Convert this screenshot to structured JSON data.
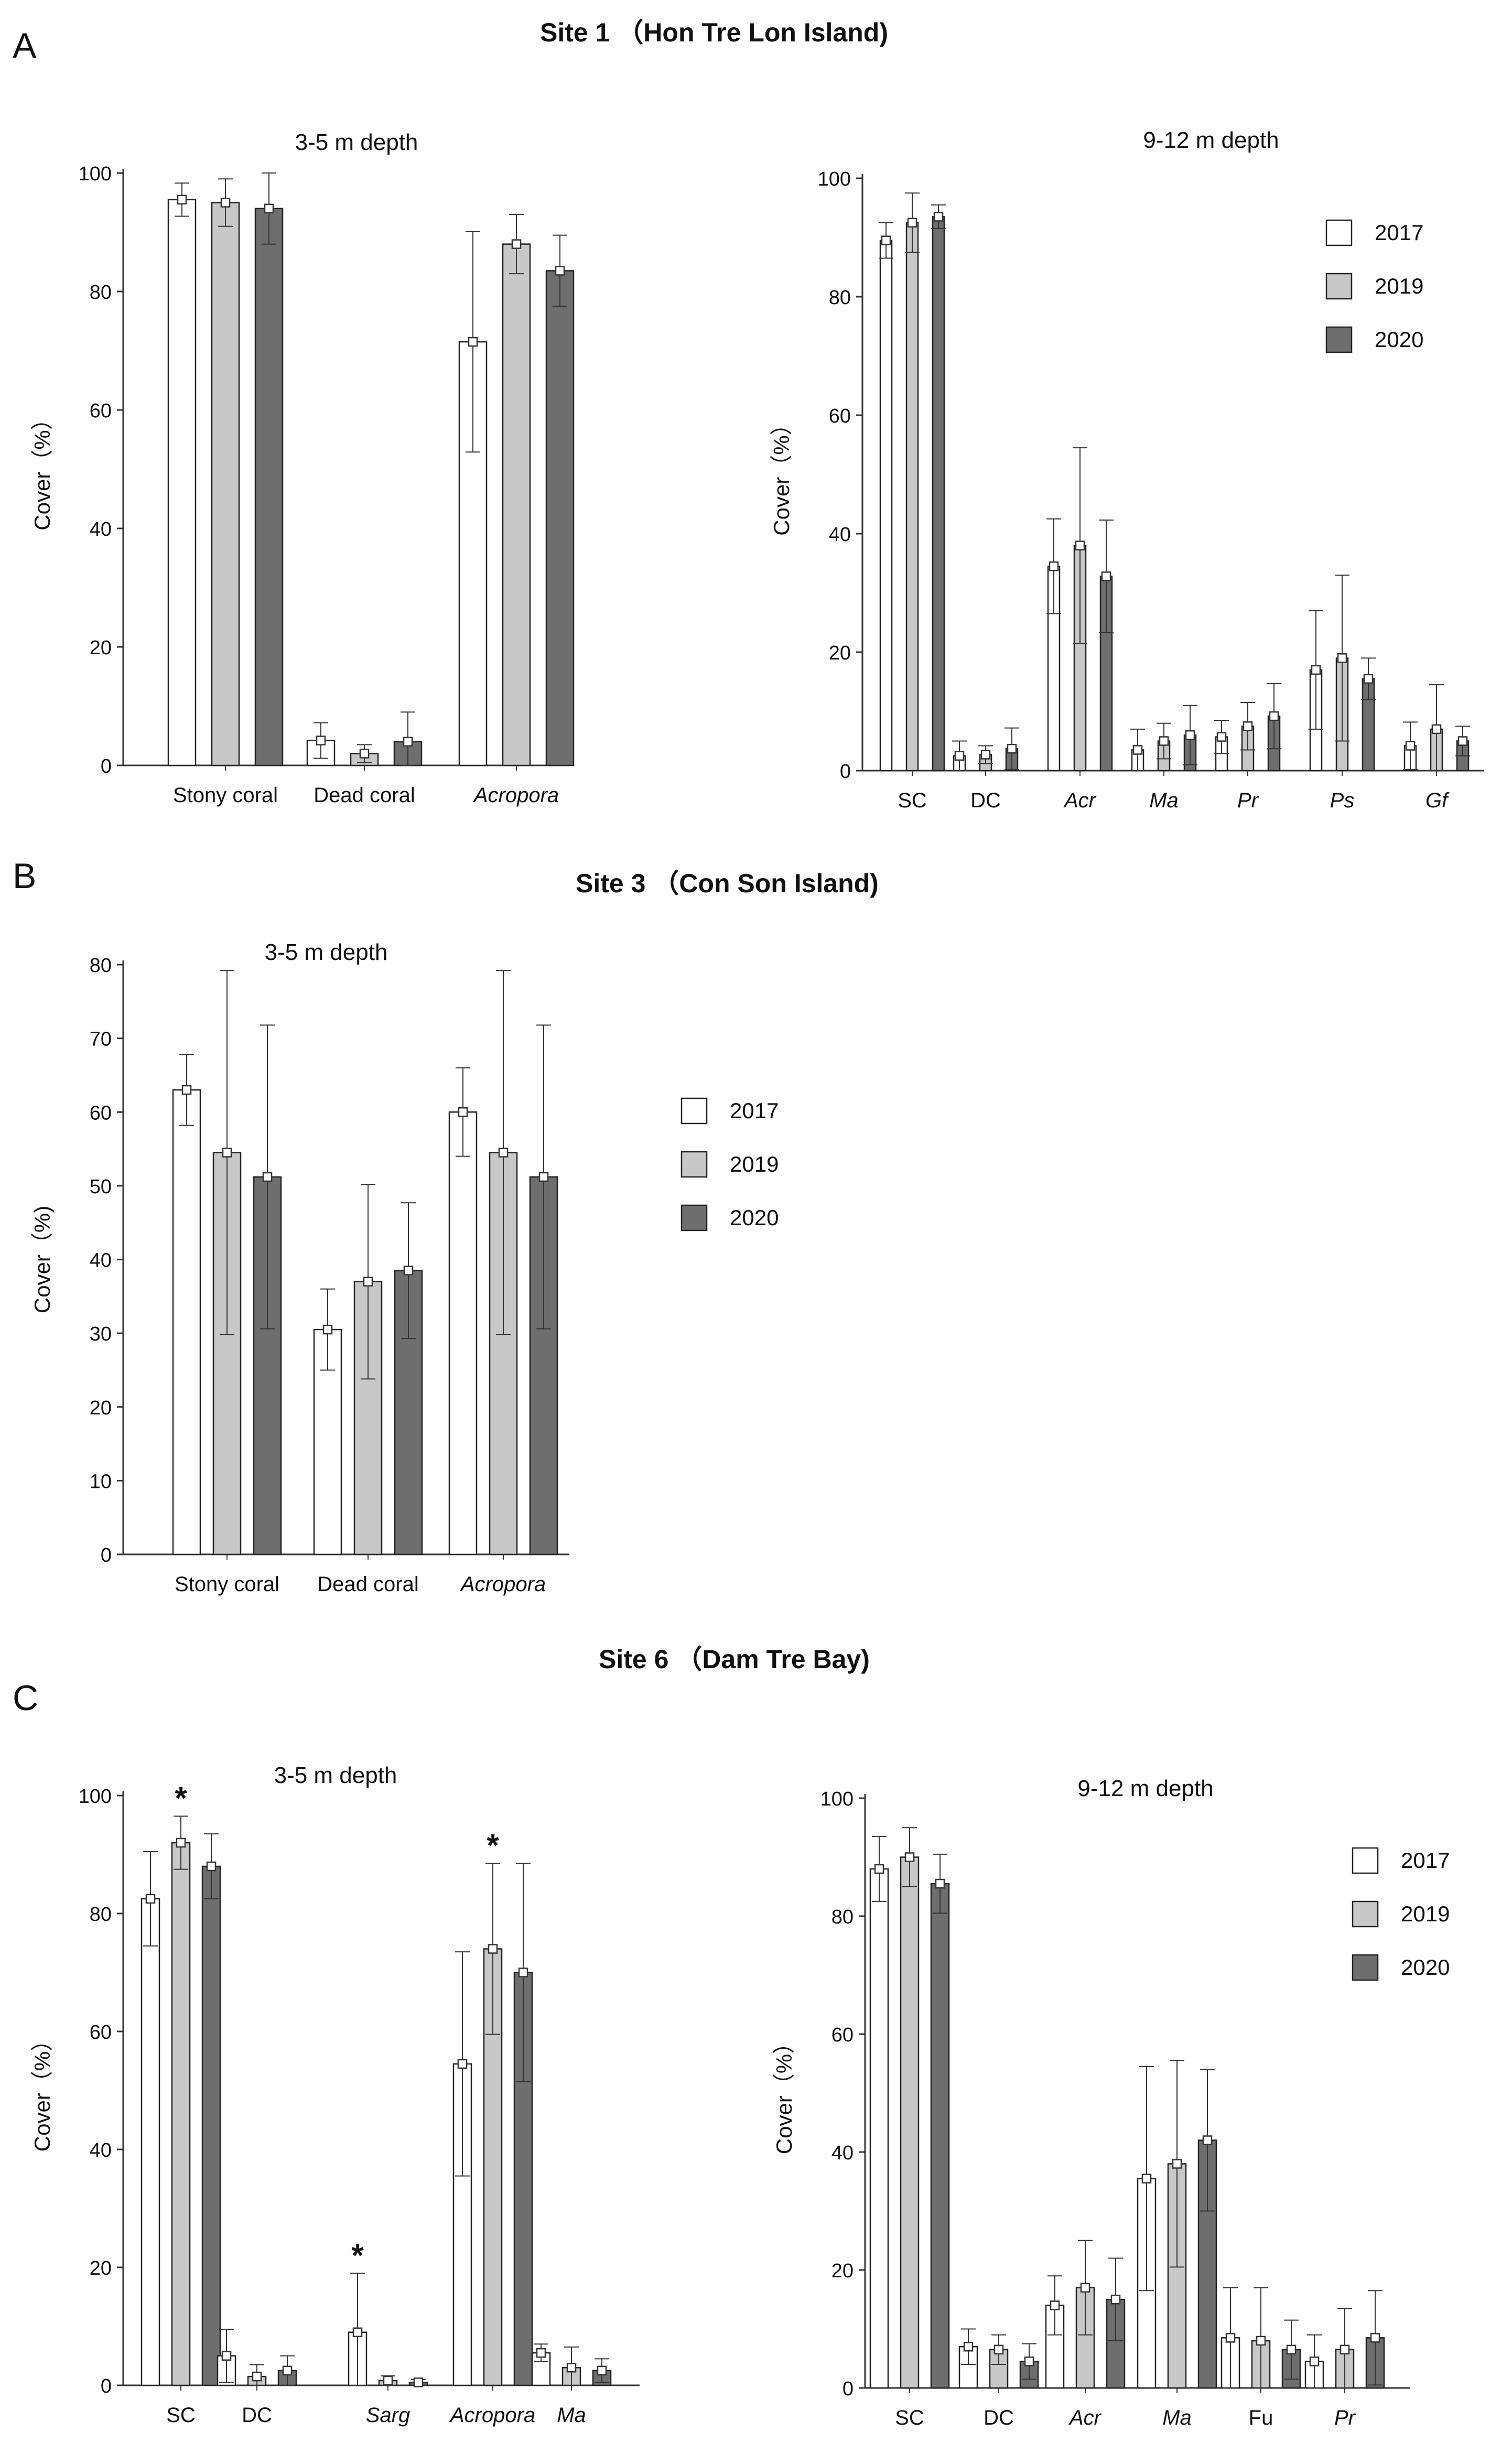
{
  "figure": {
    "panels": [
      {
        "letter": "A",
        "site_title": "Site 1 （Hon Tre Lon Island)"
      },
      {
        "letter": "B",
        "site_title": "Site 3 （Con Son Island)"
      },
      {
        "letter": "C",
        "site_title": "Site 6 （Dam Tre Bay)"
      }
    ]
  },
  "style": {
    "colors": {
      "2017": "#ffffff",
      "2019": "#c8c8c8",
      "2020": "#6e6e6e"
    },
    "axis_color": "#333333"
  },
  "chart_data": [
    {
      "id": "A1",
      "type": "bar",
      "title": "3-5 m depth",
      "ylabel": "Cover（%）",
      "ylim": [
        0,
        100
      ],
      "yticks": [
        0,
        20,
        40,
        60,
        80,
        100
      ],
      "categories": [
        "Stony coral",
        "Dead coral",
        "Acropora"
      ],
      "italic": [
        false,
        false,
        true
      ],
      "series": [
        {
          "name": "2017",
          "values": [
            95.5,
            4.2,
            71.5
          ],
          "errors": [
            2.8,
            3.0,
            18.6
          ]
        },
        {
          "name": "2019",
          "values": [
            95.0,
            2.0,
            88.0
          ],
          "errors": [
            4.0,
            1.5,
            5.0
          ]
        },
        {
          "name": "2020",
          "values": [
            94.0,
            4.0,
            83.5
          ],
          "errors": [
            6.0,
            5.0,
            6.0
          ]
        }
      ],
      "legend": false,
      "stars": []
    },
    {
      "id": "A2",
      "type": "bar",
      "title": "9-12 m depth",
      "ylabel": "Cover（%）",
      "ylim": [
        0,
        100
      ],
      "yticks": [
        0,
        20,
        40,
        60,
        80,
        100
      ],
      "categories": [
        "SC",
        "DC",
        "Acr",
        "Ma",
        "Pr",
        "Ps",
        "Gf"
      ],
      "italic": [
        false,
        false,
        true,
        true,
        true,
        true,
        true
      ],
      "series": [
        {
          "name": "2017",
          "values": [
            89.5,
            2.5,
            34.5,
            3.5,
            5.7,
            17.0,
            4.2
          ],
          "errors": [
            3.0,
            2.5,
            8.0,
            3.5,
            2.8,
            10.0,
            4.0
          ]
        },
        {
          "name": "2019",
          "values": [
            92.5,
            2.7,
            38.0,
            5.0,
            7.5,
            19.0,
            7.0
          ],
          "errors": [
            5.0,
            1.5,
            16.5,
            3.0,
            4.0,
            14.0,
            7.5
          ]
        },
        {
          "name": "2020",
          "values": [
            93.5,
            3.7,
            32.8,
            6.0,
            9.2,
            15.5,
            5.0
          ],
          "errors": [
            2.0,
            3.5,
            9.5,
            5.0,
            5.5,
            3.5,
            2.5
          ]
        }
      ],
      "legend": true,
      "stars": []
    },
    {
      "id": "B1",
      "type": "bar",
      "title": "3-5 m depth",
      "ylabel": "Cover（%)",
      "ylim": [
        0,
        80
      ],
      "yticks": [
        0,
        10,
        20,
        30,
        40,
        50,
        60,
        70,
        80
      ],
      "categories": [
        "Stony coral",
        "Dead coral",
        "Acropora"
      ],
      "italic": [
        false,
        false,
        true
      ],
      "series": [
        {
          "name": "2017",
          "values": [
            63.0,
            30.5,
            60.0
          ],
          "errors": [
            4.8,
            5.5,
            6.0
          ]
        },
        {
          "name": "2019",
          "values": [
            54.5,
            37.0,
            54.5
          ],
          "errors": [
            24.7,
            13.2,
            24.7
          ]
        },
        {
          "name": "2020",
          "values": [
            51.2,
            38.5,
            51.2
          ],
          "errors": [
            20.6,
            9.2,
            20.6
          ]
        }
      ],
      "legend": true,
      "stars": []
    },
    {
      "id": "C1",
      "type": "bar",
      "title": "3-5 m depth",
      "ylabel": "Cover（%）",
      "ylim": [
        0,
        100
      ],
      "yticks": [
        0,
        20,
        40,
        60,
        80,
        100
      ],
      "categories": [
        "SC",
        "DC",
        "Sarg",
        "Acropora",
        "Ma"
      ],
      "italic": [
        false,
        false,
        true,
        true,
        true
      ],
      "series": [
        {
          "name": "2017",
          "values": [
            82.5,
            5.0,
            9.0,
            54.5,
            5.5
          ],
          "errors": [
            8.0,
            4.5,
            10.0,
            19.0,
            1.5
          ]
        },
        {
          "name": "2019",
          "values": [
            92.0,
            1.5,
            0.8,
            74.0,
            3.0
          ],
          "errors": [
            4.5,
            2.0,
            0.8,
            14.5,
            3.5
          ]
        },
        {
          "name": "2020",
          "values": [
            88.0,
            2.5,
            0.5,
            70.0,
            2.5
          ],
          "errors": [
            5.5,
            2.5,
            0.5,
            18.5,
            2.0
          ]
        }
      ],
      "legend": false,
      "stars": [
        {
          "category": 0,
          "series": 1,
          "label": "*"
        },
        {
          "category": 2,
          "series": 0,
          "label": "*"
        },
        {
          "category": 3,
          "series": 1,
          "label": "*"
        }
      ]
    },
    {
      "id": "C2",
      "type": "bar",
      "title": "9-12 m depth",
      "ylabel": "Cover（%）",
      "ylim": [
        0,
        100
      ],
      "yticks": [
        0,
        20,
        40,
        60,
        80,
        100
      ],
      "categories": [
        "SC",
        "DC",
        "Acr",
        "Ma",
        "Fu",
        "Pr"
      ],
      "italic": [
        false,
        false,
        true,
        true,
        false,
        true
      ],
      "series": [
        {
          "name": "2017",
          "values": [
            88.0,
            7.0,
            14.0,
            35.5,
            8.5,
            4.5
          ],
          "errors": [
            5.5,
            3.0,
            5.0,
            19.0,
            8.5,
            4.5
          ]
        },
        {
          "name": "2019",
          "values": [
            90.0,
            6.5,
            17.0,
            38.0,
            8.0,
            6.5
          ],
          "errors": [
            5.0,
            2.5,
            8.0,
            17.5,
            9.0,
            7.0
          ]
        },
        {
          "name": "2020",
          "values": [
            85.5,
            4.5,
            15.0,
            42.0,
            6.5,
            8.5
          ],
          "errors": [
            5.0,
            3.0,
            7.0,
            12.0,
            5.0,
            8.0
          ]
        }
      ],
      "legend": true,
      "stars": []
    }
  ]
}
